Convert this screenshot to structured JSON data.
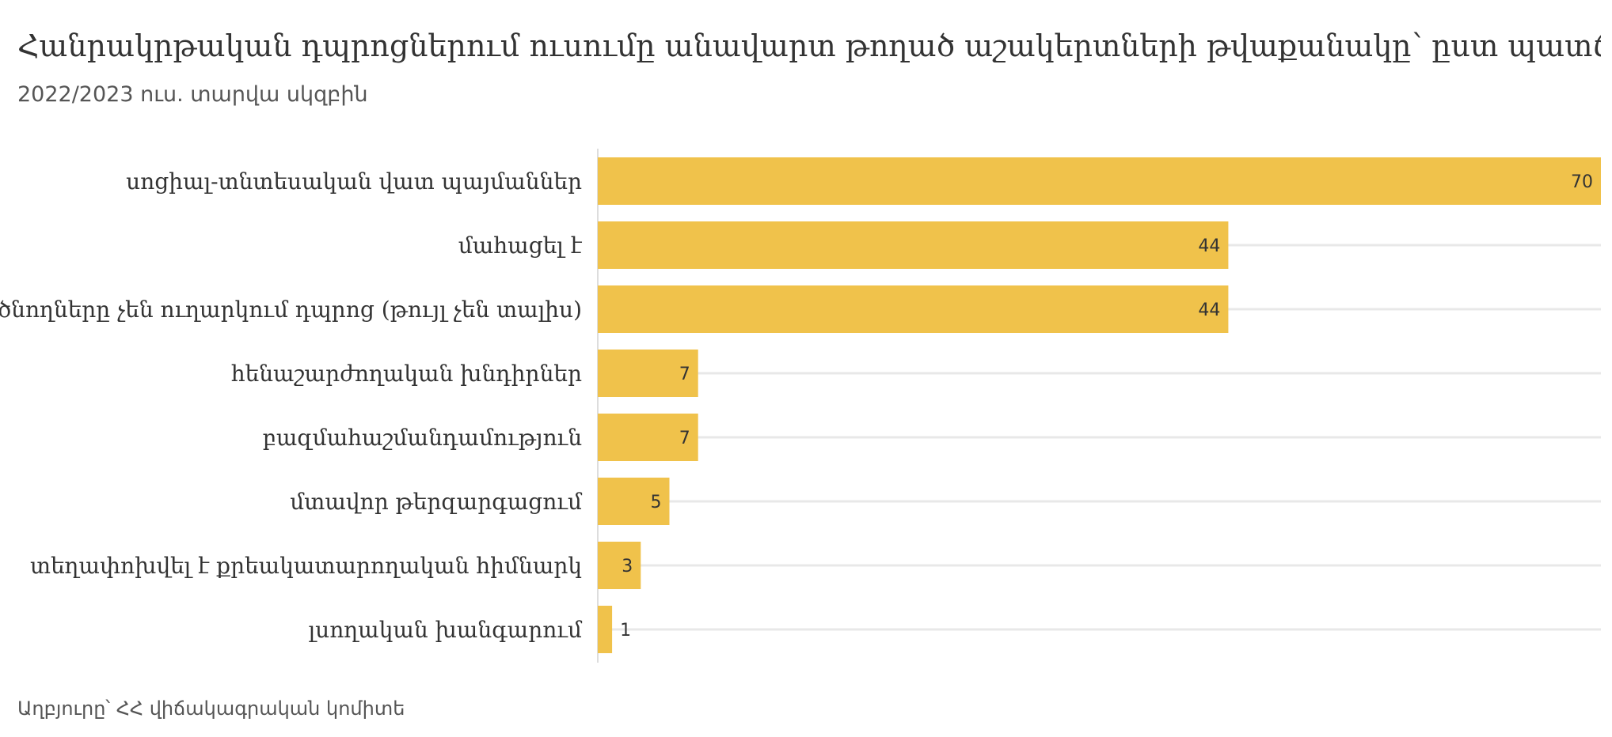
{
  "chart_data": {
    "type": "bar",
    "orientation": "horizontal",
    "title": "Հանրակրթական դպրոցներում ուսումը անավարտ թողած աշակերտների թվաքանակը՝ ըստ պատճառի",
    "subtitle": "2022/2023 ուս. տարվա սկզբին",
    "source": "Աղբյուրը՝ ՀՀ վիճակագրական կոմիտե",
    "categories": [
      "սոցիալ-տնտեսական վատ պայմաններ",
      "մահացել է",
      "ծնողները չեն ուղարկում դպրոց (թույլ չեն տալիս)",
      "հենաշարժողական խնդիրներ",
      "բազմահաշմանդամություն",
      "մտավոր թերզարգացում",
      "տեղափոխվել է քրեակատարողական հիմնարկ",
      "լսողական խանգարում"
    ],
    "values": [
      70,
      44,
      44,
      7,
      7,
      5,
      3,
      1
    ],
    "xlim": [
      0,
      70
    ],
    "grid": true,
    "bar_color": "#F0C24B",
    "grid_color": "#E8E8E8",
    "axis_color": "#DDDDDD"
  }
}
